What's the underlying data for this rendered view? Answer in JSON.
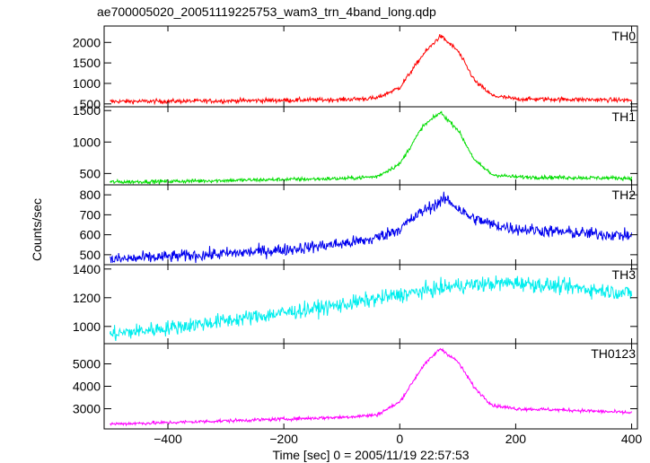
{
  "chart_data": {
    "type": "line",
    "title": "ae700005020_20051119225753_wam3_trn_4band_long.qdp",
    "xlabel": "Time [sec] 0 = 2005/11/19 22:57:53",
    "ylabel": "Counts/sec",
    "xlim": [
      -510,
      410
    ],
    "xticks": [
      -400,
      -200,
      0,
      200,
      400
    ],
    "xtick_labels": [
      "−400",
      "−200",
      "0",
      "200",
      "400"
    ],
    "grid": false,
    "panels": [
      {
        "name": "TH0",
        "color": "#ff0000",
        "ylim": [
          430,
          2400
        ],
        "yticks": [
          500,
          1000,
          1500,
          2000
        ],
        "noise": 38,
        "x": [
          -500,
          -400,
          -300,
          -200,
          -100,
          -40,
          0,
          40,
          70,
          100,
          130,
          160,
          200,
          300,
          400
        ],
        "y": [
          560,
          565,
          575,
          590,
          605,
          640,
          900,
          1700,
          2160,
          1800,
          1050,
          700,
          620,
          610,
          590
        ]
      },
      {
        "name": "TH1",
        "color": "#00dd00",
        "ylim": [
          320,
          1560
        ],
        "yticks": [
          500,
          1000,
          1500
        ],
        "noise": 22,
        "x": [
          -500,
          -400,
          -300,
          -200,
          -100,
          -40,
          0,
          40,
          70,
          100,
          130,
          160,
          200,
          300,
          400
        ],
        "y": [
          365,
          375,
          390,
          405,
          420,
          450,
          650,
          1250,
          1470,
          1200,
          700,
          480,
          445,
          435,
          425
        ]
      },
      {
        "name": "TH2",
        "color": "#0000ee",
        "ylim": [
          450,
          850
        ],
        "yticks": [
          500,
          600,
          700,
          800
        ],
        "noise": 22,
        "x": [
          -500,
          -400,
          -300,
          -200,
          -100,
          -50,
          0,
          40,
          80,
          120,
          160,
          200,
          300,
          400
        ],
        "y": [
          475,
          490,
          505,
          525,
          555,
          575,
          630,
          720,
          780,
          690,
          650,
          630,
          610,
          595
        ]
      },
      {
        "name": "TH3",
        "color": "#00eeee",
        "ylim": [
          880,
          1430
        ],
        "yticks": [
          1000,
          1200,
          1400
        ],
        "noise": 38,
        "x": [
          -500,
          -400,
          -300,
          -200,
          -100,
          0,
          100,
          200,
          300,
          400
        ],
        "y": [
          945,
          990,
          1040,
          1095,
          1150,
          1220,
          1285,
          1305,
          1270,
          1230
        ]
      },
      {
        "name": "TH0123",
        "color": "#ff00ff",
        "ylim": [
          2100,
          5900
        ],
        "yticks": [
          3000,
          4000,
          5000
        ],
        "noise": 55,
        "x": [
          -500,
          -400,
          -300,
          -200,
          -100,
          -40,
          0,
          40,
          70,
          100,
          130,
          160,
          200,
          300,
          400
        ],
        "y": [
          2320,
          2380,
          2460,
          2540,
          2620,
          2720,
          3300,
          4900,
          5680,
          5100,
          3900,
          3150,
          3000,
          2930,
          2820
        ]
      }
    ]
  }
}
